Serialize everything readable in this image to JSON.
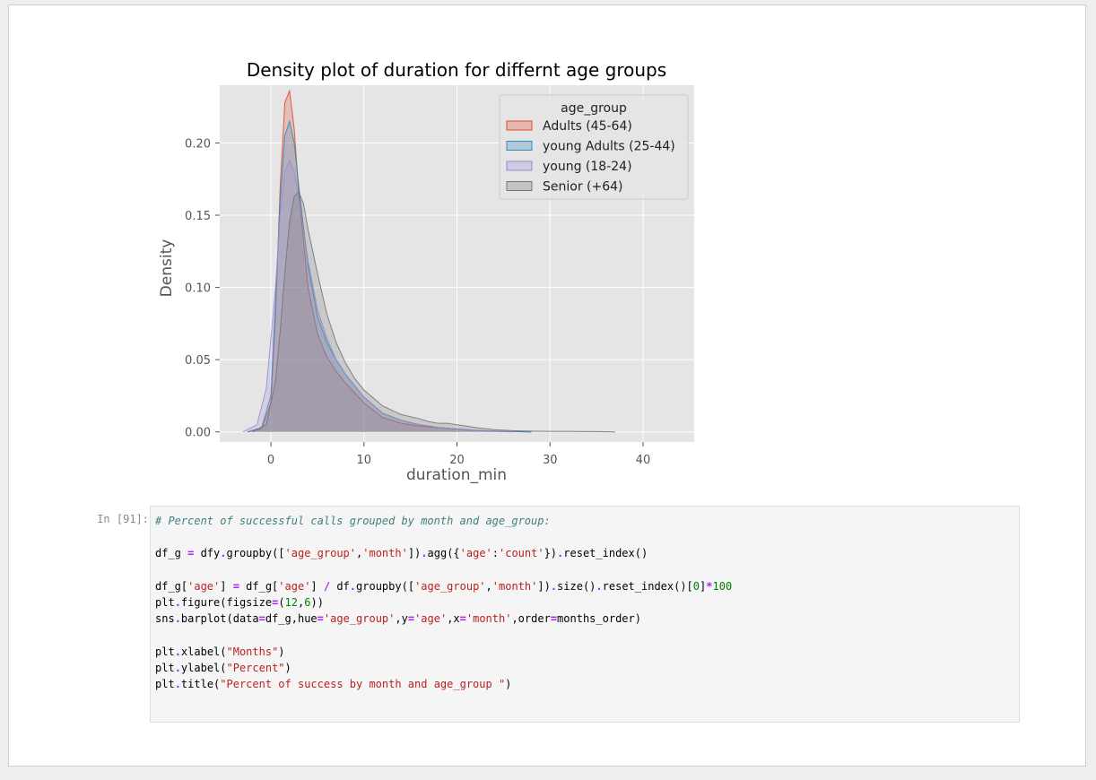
{
  "cell": {
    "prompt": "In [91]:",
    "code_lines": [
      [
        {
          "t": "# Percent of successful calls grouped by month and age_group:",
          "c": "comment"
        }
      ],
      [],
      [
        {
          "t": "df_g ",
          "c": "name"
        },
        {
          "t": "=",
          "c": "op"
        },
        {
          "t": " dfy",
          "c": "name"
        },
        {
          "t": ".",
          "c": "op"
        },
        {
          "t": "groupby([",
          "c": "name"
        },
        {
          "t": "'age_group'",
          "c": "str"
        },
        {
          "t": ",",
          "c": "name"
        },
        {
          "t": "'month'",
          "c": "str"
        },
        {
          "t": "])",
          "c": "name"
        },
        {
          "t": ".",
          "c": "op"
        },
        {
          "t": "agg({",
          "c": "name"
        },
        {
          "t": "'age'",
          "c": "str"
        },
        {
          "t": ":",
          "c": "name"
        },
        {
          "t": "'count'",
          "c": "str"
        },
        {
          "t": "})",
          "c": "name"
        },
        {
          "t": ".",
          "c": "op"
        },
        {
          "t": "reset_index()",
          "c": "name"
        }
      ],
      [],
      [
        {
          "t": "df_g[",
          "c": "name"
        },
        {
          "t": "'age'",
          "c": "str"
        },
        {
          "t": "] ",
          "c": "name"
        },
        {
          "t": "=",
          "c": "op"
        },
        {
          "t": " df_g[",
          "c": "name"
        },
        {
          "t": "'age'",
          "c": "str"
        },
        {
          "t": "] ",
          "c": "name"
        },
        {
          "t": "/",
          "c": "op"
        },
        {
          "t": " df",
          "c": "name"
        },
        {
          "t": ".",
          "c": "op"
        },
        {
          "t": "groupby([",
          "c": "name"
        },
        {
          "t": "'age_group'",
          "c": "str"
        },
        {
          "t": ",",
          "c": "name"
        },
        {
          "t": "'month'",
          "c": "str"
        },
        {
          "t": "])",
          "c": "name"
        },
        {
          "t": ".",
          "c": "op"
        },
        {
          "t": "size()",
          "c": "name"
        },
        {
          "t": ".",
          "c": "op"
        },
        {
          "t": "reset_index()[",
          "c": "name"
        },
        {
          "t": "0",
          "c": "num"
        },
        {
          "t": "]",
          "c": "name"
        },
        {
          "t": "*",
          "c": "op"
        },
        {
          "t": "100",
          "c": "num"
        }
      ],
      [
        {
          "t": "plt",
          "c": "name"
        },
        {
          "t": ".",
          "c": "op"
        },
        {
          "t": "figure(figsize",
          "c": "name"
        },
        {
          "t": "=",
          "c": "op"
        },
        {
          "t": "(",
          "c": "name"
        },
        {
          "t": "12",
          "c": "num"
        },
        {
          "t": ",",
          "c": "name"
        },
        {
          "t": "6",
          "c": "num"
        },
        {
          "t": "))",
          "c": "name"
        }
      ],
      [
        {
          "t": "sns",
          "c": "name"
        },
        {
          "t": ".",
          "c": "op"
        },
        {
          "t": "barplot(data",
          "c": "name"
        },
        {
          "t": "=",
          "c": "op"
        },
        {
          "t": "df_g,hue",
          "c": "name"
        },
        {
          "t": "=",
          "c": "op"
        },
        {
          "t": "'age_group'",
          "c": "str"
        },
        {
          "t": ",y",
          "c": "name"
        },
        {
          "t": "=",
          "c": "op"
        },
        {
          "t": "'age'",
          "c": "str"
        },
        {
          "t": ",x",
          "c": "name"
        },
        {
          "t": "=",
          "c": "op"
        },
        {
          "t": "'month'",
          "c": "str"
        },
        {
          "t": ",order",
          "c": "name"
        },
        {
          "t": "=",
          "c": "op"
        },
        {
          "t": "months_order)",
          "c": "name"
        }
      ],
      [],
      [
        {
          "t": "plt",
          "c": "name"
        },
        {
          "t": ".",
          "c": "op"
        },
        {
          "t": "xlabel(",
          "c": "name"
        },
        {
          "t": "\"Months\"",
          "c": "str"
        },
        {
          "t": ")",
          "c": "name"
        }
      ],
      [
        {
          "t": "plt",
          "c": "name"
        },
        {
          "t": ".",
          "c": "op"
        },
        {
          "t": "ylabel(",
          "c": "name"
        },
        {
          "t": "\"Percent\"",
          "c": "str"
        },
        {
          "t": ")",
          "c": "name"
        }
      ],
      [
        {
          "t": "plt",
          "c": "name"
        },
        {
          "t": ".",
          "c": "op"
        },
        {
          "t": "title(",
          "c": "name"
        },
        {
          "t": "\"Percent of success by month and age_group \"",
          "c": "str"
        },
        {
          "t": ")",
          "c": "name"
        }
      ]
    ]
  },
  "chart_data": {
    "type": "area",
    "title": "Density plot of duration for differnt age groups",
    "xlabel": "duration_min",
    "ylabel": "Density",
    "xlim": [
      -5.5,
      45.5
    ],
    "ylim": [
      -0.007,
      0.24
    ],
    "xticks": [
      0,
      10,
      20,
      30,
      40
    ],
    "yticks": [
      0.0,
      0.05,
      0.1,
      0.15,
      0.2
    ],
    "ytick_labels": [
      "0.00",
      "0.05",
      "0.10",
      "0.15",
      "0.20"
    ],
    "grid": true,
    "legend": {
      "title": "age_group",
      "placement": "top-right"
    },
    "series": [
      {
        "name": "Adults (45-64)",
        "color": "#e24a33",
        "x": [
          -2.5,
          -1,
          0,
          0.5,
          1,
          1.5,
          2,
          2.5,
          3,
          4,
          5,
          6,
          7,
          8,
          10,
          12,
          14,
          16,
          18,
          20,
          22,
          25,
          28
        ],
        "y": [
          0,
          0.002,
          0.02,
          0.08,
          0.17,
          0.228,
          0.236,
          0.21,
          0.165,
          0.1,
          0.068,
          0.052,
          0.042,
          0.034,
          0.02,
          0.01,
          0.006,
          0.004,
          0.003,
          0.002,
          0.001,
          0.0003,
          0
        ]
      },
      {
        "name": "young Adults (25-44)",
        "color": "#348abd",
        "x": [
          -2.5,
          -1,
          0,
          0.5,
          1,
          1.5,
          2,
          2.5,
          3,
          4,
          5,
          6,
          7,
          8,
          10,
          12,
          14,
          16,
          18,
          20,
          22,
          25,
          28
        ],
        "y": [
          0,
          0.003,
          0.025,
          0.09,
          0.16,
          0.205,
          0.215,
          0.2,
          0.17,
          0.115,
          0.08,
          0.062,
          0.05,
          0.04,
          0.024,
          0.013,
          0.008,
          0.005,
          0.003,
          0.002,
          0.001,
          0.0003,
          0
        ]
      },
      {
        "name": "young (18-24)",
        "color": "#988ed5",
        "x": [
          -3,
          -1.5,
          -0.5,
          0.5,
          1,
          1.5,
          2,
          2.5,
          3,
          4,
          5,
          6,
          7,
          8,
          10,
          12,
          14,
          16,
          18,
          20,
          23,
          26
        ],
        "y": [
          0,
          0.005,
          0.03,
          0.1,
          0.15,
          0.18,
          0.188,
          0.18,
          0.162,
          0.118,
          0.085,
          0.065,
          0.05,
          0.04,
          0.024,
          0.013,
          0.008,
          0.005,
          0.003,
          0.002,
          0.0005,
          0
        ]
      },
      {
        "name": "Senior (+64)",
        "color": "#777777",
        "x": [
          -2,
          -0.5,
          0.5,
          1,
          1.5,
          2,
          2.5,
          3,
          3.5,
          4,
          5,
          6,
          7,
          8,
          9,
          10,
          12,
          14,
          16,
          17,
          18,
          19,
          20,
          21,
          22,
          24,
          26,
          28,
          30,
          33,
          35,
          37
        ],
        "y": [
          0,
          0.005,
          0.035,
          0.07,
          0.11,
          0.145,
          0.163,
          0.166,
          0.158,
          0.14,
          0.11,
          0.082,
          0.062,
          0.048,
          0.037,
          0.029,
          0.018,
          0.012,
          0.009,
          0.007,
          0.006,
          0.006,
          0.005,
          0.004,
          0.003,
          0.0015,
          0.0008,
          0.0005,
          0.0004,
          0.0003,
          0.0002,
          0
        ]
      }
    ]
  }
}
